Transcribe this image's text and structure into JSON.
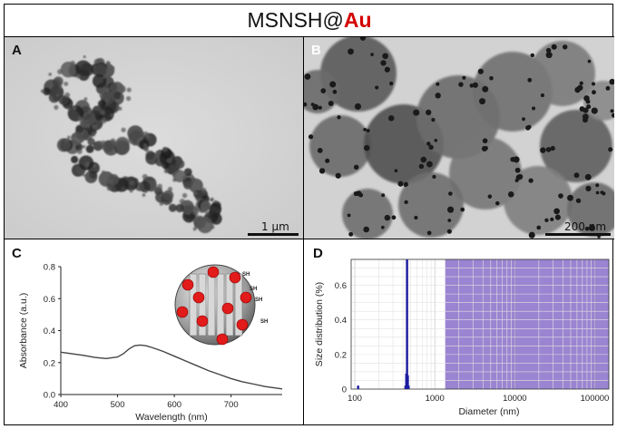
{
  "figure": {
    "title_prefix": "MSNSH@",
    "title_suffix": "Au",
    "accent_color": "#d40000"
  },
  "panels": {
    "a": {
      "letter": "A",
      "scale_label": "1 µm"
    },
    "b": {
      "letter": "B",
      "scale_label": "200 nm"
    },
    "c": {
      "letter": "C",
      "inset_labels": [
        "SH",
        "SH",
        "SH",
        "SH"
      ]
    },
    "d": {
      "letter": "D"
    }
  },
  "chart_data": [
    {
      "type": "line",
      "panel": "C",
      "xlabel": "Wavelength (nm)",
      "ylabel": "Absorbance (a.u.)",
      "xlim": [
        400,
        790
      ],
      "ylim": [
        0,
        0.8
      ],
      "xticks": [
        400,
        500,
        600,
        700
      ],
      "yticks": [
        0.0,
        0.2,
        0.4,
        0.6,
        0.8
      ],
      "ytick_labels": [
        "0.0",
        "0.2",
        "0.4",
        "0.6",
        "0.8"
      ],
      "series": [
        {
          "x": [
            400,
            420,
            440,
            460,
            480,
            500,
            510,
            520,
            530,
            540,
            550,
            560,
            580,
            600,
            620,
            640,
            660,
            680,
            700,
            720,
            740,
            760,
            790
          ],
          "y": [
            0.265,
            0.255,
            0.245,
            0.232,
            0.225,
            0.235,
            0.255,
            0.285,
            0.305,
            0.31,
            0.305,
            0.295,
            0.27,
            0.24,
            0.21,
            0.18,
            0.15,
            0.125,
            0.1,
            0.08,
            0.065,
            0.05,
            0.035
          ],
          "color": "#444444"
        }
      ],
      "grid": false
    },
    {
      "type": "bar",
      "panel": "D",
      "xlabel": "Diameter (nm)",
      "ylabel": "Size distribution (%)",
      "xscale": "log",
      "xlim": [
        90,
        150000
      ],
      "ylim": [
        0,
        0.75
      ],
      "xticks": [
        100,
        1000,
        10000,
        100000
      ],
      "xtick_labels": [
        "100",
        "1000",
        "10000",
        "100000"
      ],
      "yticks": [
        0,
        0.2,
        0.4,
        0.6
      ],
      "ytick_labels": [
        "0",
        "0.2",
        "0.4",
        "0.6"
      ],
      "series": [
        {
          "x": [
            110,
            430,
            440,
            450,
            460,
            470
          ],
          "y": [
            0.02,
            0.02,
            0.09,
            0.75,
            0.08,
            0.02
          ],
          "color": "#1a1aa0"
        }
      ],
      "shaded_region": {
        "x_from": 1350,
        "x_to": 150000,
        "color": "#8a6fc9"
      },
      "grid": true
    }
  ]
}
